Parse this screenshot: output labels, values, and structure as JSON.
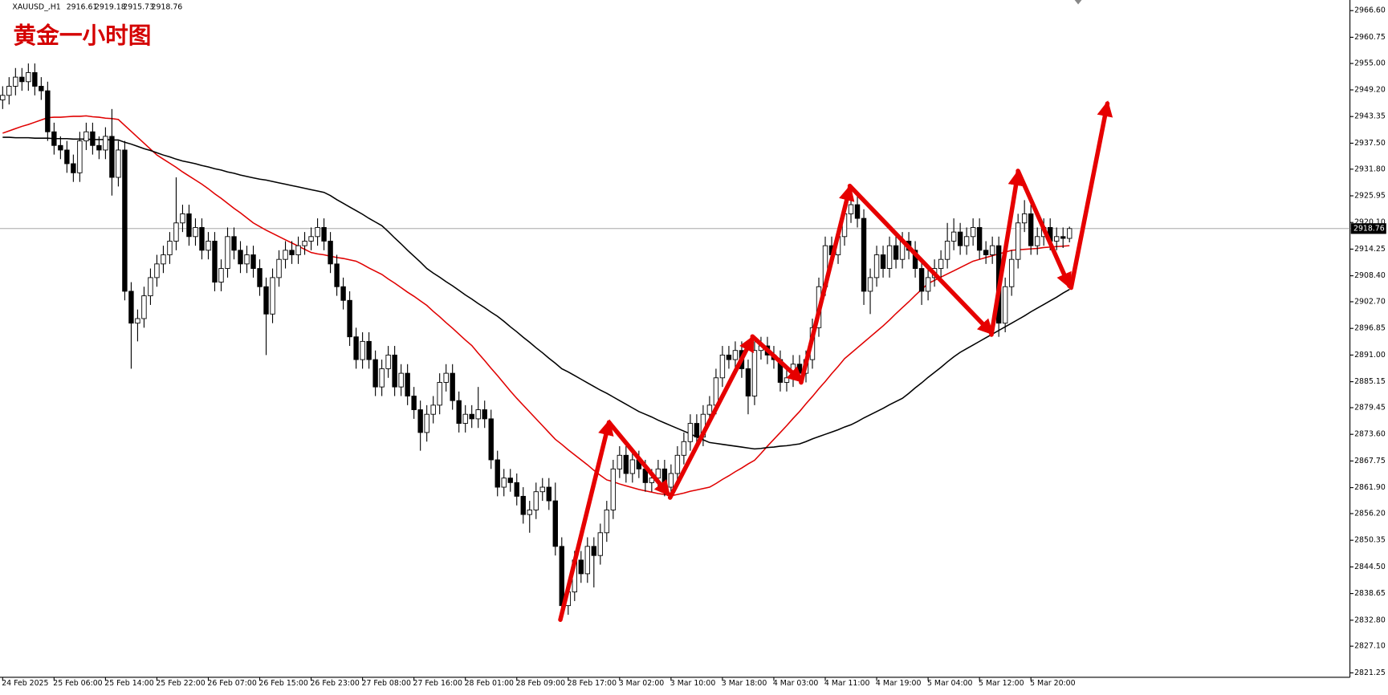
{
  "chart_data": {
    "type": "candlestick",
    "symbol": "XAUUSD_,H1",
    "title": "黄金一小时图",
    "categories": [
      "24 Feb 2025",
      null,
      null,
      null,
      null,
      null,
      null,
      null,
      "25 Feb 06:00",
      null,
      null,
      null,
      null,
      null,
      null,
      null,
      "25 Feb 14:00",
      null,
      null,
      null,
      null,
      null,
      null,
      null,
      "25 Feb 22:00",
      null,
      null,
      null,
      null,
      null,
      null,
      null,
      "26 Feb 07:00",
      null,
      null,
      null,
      null,
      null,
      null,
      null,
      "26 Feb 15:00",
      null,
      null,
      null,
      null,
      null,
      null,
      null,
      "26 Feb 23:00",
      null,
      null,
      null,
      null,
      null,
      null,
      null,
      "27 Feb 08:00",
      null,
      null,
      null,
      null,
      null,
      null,
      null,
      "27 Feb 16:00",
      null,
      null,
      null,
      null,
      null,
      null,
      null,
      "28 Feb 01:00",
      null,
      null,
      null,
      null,
      null,
      null,
      null,
      "28 Feb 09:00",
      null,
      null,
      null,
      null,
      null,
      null,
      null,
      "28 Feb 17:00",
      null,
      null,
      null,
      null,
      null,
      null,
      null,
      "3 Mar 02:00",
      null,
      null,
      null,
      null,
      null,
      null,
      null,
      "3 Mar 10:00",
      null,
      null,
      null,
      null,
      null,
      null,
      null,
      "3 Mar 18:00",
      null,
      null,
      null,
      null,
      null,
      null,
      null,
      "4 Mar 03:00",
      null,
      null,
      null,
      null,
      null,
      null,
      null,
      "4 Mar 11:00",
      null,
      null,
      null,
      null,
      null,
      null,
      null,
      "4 Mar 19:00",
      null,
      null,
      null,
      null,
      null,
      null,
      null,
      "5 Mar 04:00",
      null,
      null,
      null,
      null,
      null,
      null,
      null,
      "5 Mar 12:00",
      null,
      null,
      null,
      null,
      null,
      null,
      null,
      "5 Mar 20:00",
      null,
      null,
      null,
      null,
      null,
      null
    ],
    "open": [
      2947,
      2948,
      2950,
      2952,
      2951,
      2953,
      2950,
      2949,
      2940,
      2937,
      2936,
      2933,
      2931,
      2938,
      2940,
      2937,
      2936,
      2939,
      2930,
      2936,
      2905,
      2898,
      2899,
      2904,
      2908,
      2911,
      2913,
      2916,
      2920,
      2922,
      2917,
      2919,
      2914,
      2916,
      2907,
      2910,
      2917,
      2914,
      2911,
      2913,
      2910,
      2906,
      2900,
      2908,
      2912,
      2914,
      2913,
      2915,
      2916,
      2917,
      2919,
      2916,
      2911,
      2906,
      2903,
      2895,
      2890,
      2894,
      2890,
      2884,
      2888,
      2891,
      2884,
      2887,
      2882,
      2879,
      2874,
      2878,
      2880,
      2885,
      2887,
      2881,
      2876,
      2878,
      2877,
      2879,
      2877,
      2868,
      2862,
      2864,
      2863,
      2860,
      2856,
      2857,
      2861,
      2862,
      2859,
      2849,
      2836,
      2839,
      2846,
      2843,
      2849,
      2847,
      2852,
      2857,
      2866,
      2869,
      2865,
      2868,
      2866,
      2863,
      2864,
      2866,
      2862,
      2865,
      2869,
      2872,
      2876,
      2873,
      2878,
      2880,
      2886,
      2891,
      2890,
      2892,
      2888,
      2882,
      2892,
      2893,
      2891,
      2890,
      2885,
      2886,
      2889,
      2887,
      2890,
      2897,
      2906,
      2915,
      2913,
      2917,
      2922,
      2924,
      2921,
      2905,
      2908,
      2913,
      2910,
      2915,
      2912,
      2916,
      2914,
      2910,
      2905,
      2908,
      2910,
      2912,
      2916,
      2918,
      2915,
      2917,
      2919,
      2914,
      2913,
      2915,
      2898,
      2906,
      2912,
      2920,
      2922,
      2915,
      2917,
      2919,
      2916,
      2917,
      2916.61
    ],
    "high": [
      2950,
      2952,
      2954,
      2954,
      2955,
      2955,
      2952,
      2951,
      2942,
      2939,
      2938,
      2935,
      2940,
      2942,
      2942,
      2939,
      2941,
      2945,
      2938,
      2938,
      2907,
      2901,
      2906,
      2910,
      2913,
      2915,
      2918,
      2930,
      2924,
      2924,
      2921,
      2921,
      2918,
      2918,
      2912,
      2919,
      2919,
      2916,
      2915,
      2915,
      2912,
      2908,
      2910,
      2914,
      2916,
      2916,
      2917,
      2918,
      2919,
      2921,
      2921,
      2918,
      2913,
      2908,
      2905,
      2897,
      2896,
      2896,
      2892,
      2890,
      2893,
      2893,
      2889,
      2889,
      2884,
      2881,
      2880,
      2882,
      2887,
      2889,
      2889,
      2883,
      2880,
      2880,
      2884,
      2881,
      2879,
      2870,
      2866,
      2866,
      2865,
      2862,
      2859,
      2863,
      2864,
      2864,
      2863,
      2851,
      2841,
      2848,
      2848,
      2851,
      2851,
      2854,
      2859,
      2868,
      2871,
      2871,
      2870,
      2870,
      2868,
      2866,
      2868,
      2868,
      2867,
      2871,
      2874,
      2878,
      2878,
      2880,
      2882,
      2888,
      2893,
      2893,
      2894,
      2894,
      2890,
      2894,
      2895,
      2895,
      2893,
      2892,
      2888,
      2891,
      2891,
      2892,
      2899,
      2908,
      2917,
      2917,
      2919,
      2924,
      2928,
      2926,
      2923,
      2910,
      2915,
      2915,
      2917,
      2917,
      2918,
      2918,
      2916,
      2912,
      2910,
      2912,
      2914,
      2920,
      2921,
      2920,
      2919,
      2921,
      2921,
      2916,
      2917,
      2917,
      2908,
      2914,
      2922,
      2925,
      2924,
      2919,
      2921,
      2921,
      2919,
      2919,
      2919.18
    ],
    "low": [
      2945,
      2946,
      2948,
      2949,
      2949,
      2948,
      2947,
      2938,
      2935,
      2934,
      2931,
      2929,
      2929,
      2936,
      2935,
      2934,
      2934,
      2926,
      2928,
      2903,
      2888,
      2894,
      2897,
      2902,
      2906,
      2909,
      2911,
      2914,
      2918,
      2915,
      2915,
      2912,
      2912,
      2905,
      2905,
      2908,
      2912,
      2909,
      2909,
      2908,
      2904,
      2891,
      2898,
      2906,
      2910,
      2911,
      2911,
      2913,
      2914,
      2915,
      2914,
      2909,
      2904,
      2901,
      2893,
      2888,
      2888,
      2888,
      2882,
      2882,
      2886,
      2882,
      2882,
      2880,
      2877,
      2870,
      2872,
      2876,
      2878,
      2883,
      2879,
      2874,
      2874,
      2875,
      2875,
      2875,
      2866,
      2860,
      2860,
      2861,
      2858,
      2854,
      2852,
      2855,
      2859,
      2857,
      2847,
      2833,
      2834,
      2837,
      2841,
      2841,
      2840,
      2845,
      2850,
      2855,
      2864,
      2863,
      2863,
      2864,
      2861,
      2861,
      2862,
      2860,
      2860,
      2863,
      2867,
      2870,
      2871,
      2871,
      2876,
      2878,
      2884,
      2888,
      2888,
      2886,
      2878,
      2880,
      2890,
      2889,
      2888,
      2883,
      2883,
      2884,
      2885,
      2885,
      2888,
      2895,
      2904,
      2911,
      2911,
      2915,
      2920,
      2919,
      2902,
      2900,
      2906,
      2908,
      2908,
      2910,
      2910,
      2912,
      2908,
      2902,
      2903,
      2906,
      2908,
      2910,
      2914,
      2913,
      2913,
      2915,
      2912,
      2911,
      2911,
      2895,
      2896,
      2904,
      2910,
      2918,
      2913,
      2913,
      2915,
      2914,
      2914,
      2914.5,
      2915.73
    ],
    "close": [
      2948,
      2950,
      2952,
      2951,
      2953,
      2950,
      2949,
      2940,
      2937,
      2936,
      2933,
      2931,
      2938,
      2940,
      2937,
      2936,
      2939,
      2930,
      2936,
      2905,
      2898,
      2899,
      2904,
      2908,
      2911,
      2913,
      2916,
      2920,
      2922,
      2917,
      2919,
      2914,
      2916,
      2907,
      2910,
      2917,
      2914,
      2911,
      2913,
      2910,
      2906,
      2900,
      2908,
      2912,
      2914,
      2913,
      2915,
      2916,
      2917,
      2919,
      2916,
      2911,
      2906,
      2903,
      2895,
      2890,
      2894,
      2890,
      2884,
      2888,
      2891,
      2884,
      2887,
      2882,
      2879,
      2874,
      2878,
      2880,
      2885,
      2887,
      2881,
      2876,
      2878,
      2877,
      2879,
      2877,
      2868,
      2862,
      2864,
      2863,
      2860,
      2856,
      2857,
      2861,
      2862,
      2859,
      2849,
      2836,
      2839,
      2846,
      2843,
      2849,
      2847,
      2852,
      2857,
      2866,
      2869,
      2865,
      2868,
      2866,
      2863,
      2864,
      2866,
      2862,
      2865,
      2869,
      2872,
      2876,
      2873,
      2878,
      2880,
      2886,
      2891,
      2890,
      2892,
      2888,
      2882,
      2892,
      2893,
      2891,
      2890,
      2885,
      2886,
      2889,
      2887,
      2890,
      2897,
      2906,
      2915,
      2913,
      2917,
      2922,
      2924,
      2921,
      2905,
      2908,
      2913,
      2910,
      2915,
      2912,
      2916,
      2914,
      2910,
      2905,
      2908,
      2910,
      2912,
      2916,
      2918,
      2915,
      2917,
      2919,
      2914,
      2913,
      2915,
      2898,
      2906,
      2912,
      2920,
      2922,
      2915,
      2917,
      2919,
      2916,
      2917,
      2916.61,
      2918.76
    ],
    "series": [
      {
        "color": "#e00000",
        "values": [
          2939.7,
          2940.2,
          2940.7,
          2941.2,
          2941.6,
          2942.1,
          2942.6,
          2943.1,
          2943.2,
          2943.2,
          2943.3,
          2943.4,
          2943.4,
          2943.5,
          2943.3,
          2943.2,
          2943.0,
          2942.9,
          2942.7,
          2941.4,
          2940.1,
          2938.8,
          2937.5,
          2936.2,
          2934.9,
          2934.0,
          2933.1,
          2932.2,
          2931.2,
          2930.3,
          2929.4,
          2928.5,
          2927.5,
          2926.4,
          2925.4,
          2924.3,
          2923.2,
          2922.2,
          2921.1,
          2920.0,
          2919.2,
          2918.4,
          2917.7,
          2917.0,
          2916.3,
          2915.6,
          2914.9,
          2914.2,
          2913.5,
          2913.2,
          2913.0,
          2912.7,
          2912.4,
          2912.2,
          2911.9,
          2911.6,
          2910.9,
          2910.1,
          2909.4,
          2908.7,
          2907.7,
          2906.8,
          2905.8,
          2904.8,
          2903.9,
          2902.9,
          2901.9,
          2900.6,
          2899.4,
          2898.1,
          2896.9,
          2895.6,
          2894.3,
          2893.1,
          2891.4,
          2889.8,
          2888.1,
          2886.5,
          2884.8,
          2883.1,
          2881.5,
          2880.0,
          2878.5,
          2877.0,
          2875.5,
          2874.0,
          2872.5,
          2871.4,
          2870.2,
          2869.1,
          2868.0,
          2866.9,
          2865.7,
          2864.6,
          2863.6,
          2863.2,
          2862.7,
          2862.3,
          2861.9,
          2861.5,
          2861.2,
          2860.9,
          2860.6,
          2860.4,
          2860.1,
          2860.4,
          2860.7,
          2861.1,
          2861.4,
          2861.7,
          2862.0,
          2862.8,
          2863.7,
          2864.5,
          2865.4,
          2866.2,
          2867.1,
          2867.9,
          2869.4,
          2871.0,
          2872.5,
          2874.0,
          2875.5,
          2877.1,
          2878.6,
          2880.3,
          2881.9,
          2883.6,
          2885.2,
          2886.9,
          2888.5,
          2890.2,
          2891.4,
          2892.6,
          2893.8,
          2895.0,
          2896.2,
          2897.4,
          2898.7,
          2900.1,
          2901.4,
          2902.7,
          2904.1,
          2905.4,
          2906.7,
          2907.4,
          2908.1,
          2908.8,
          2909.5,
          2910.2,
          2910.9,
          2911.6,
          2912.0,
          2912.4,
          2912.8,
          2913.2,
          2913.6,
          2914.0,
          2914.1,
          2914.2,
          2914.3,
          2914.4,
          2914.6,
          2914.7,
          2914.8,
          2914.9,
          2915.0
        ]
      },
      {
        "color": "#000000",
        "values": [
          2938.8,
          2938.8,
          2938.7,
          2938.7,
          2938.7,
          2938.6,
          2938.6,
          2938.6,
          2938.5,
          2938.5,
          2938.5,
          2938.4,
          2938.4,
          2938.4,
          2938.3,
          2938.3,
          2938.3,
          2938.2,
          2938.2,
          2937.7,
          2937.3,
          2936.8,
          2936.3,
          2935.9,
          2935.4,
          2934.9,
          2934.5,
          2934.0,
          2933.6,
          2933.3,
          2933.0,
          2932.6,
          2932.3,
          2931.9,
          2931.6,
          2931.2,
          2930.9,
          2930.5,
          2930.2,
          2929.9,
          2929.6,
          2929.4,
          2929.1,
          2928.8,
          2928.5,
          2928.2,
          2927.9,
          2927.6,
          2927.3,
          2927.0,
          2926.7,
          2926.0,
          2925.1,
          2924.3,
          2923.5,
          2922.7,
          2921.9,
          2921.0,
          2920.2,
          2919.4,
          2918.1,
          2916.7,
          2915.4,
          2914.0,
          2912.7,
          2911.4,
          2910.0,
          2909.0,
          2908.1,
          2907.1,
          2906.2,
          2905.2,
          2904.2,
          2903.3,
          2902.3,
          2901.4,
          2900.4,
          2899.5,
          2898.4,
          2897.2,
          2896.1,
          2894.9,
          2893.8,
          2892.6,
          2891.5,
          2890.3,
          2889.2,
          2888.0,
          2887.3,
          2886.5,
          2885.7,
          2884.9,
          2884.1,
          2883.3,
          2882.6,
          2881.8,
          2881.0,
          2880.2,
          2879.4,
          2878.6,
          2878.0,
          2877.4,
          2876.7,
          2876.1,
          2875.5,
          2874.9,
          2874.3,
          2873.7,
          2873.0,
          2872.4,
          2871.8,
          2871.6,
          2871.4,
          2871.2,
          2871.0,
          2870.8,
          2870.6,
          2870.4,
          2870.5,
          2870.7,
          2870.8,
          2871.0,
          2871.1,
          2871.3,
          2871.5,
          2872.0,
          2872.6,
          2873.1,
          2873.6,
          2874.1,
          2874.6,
          2875.2,
          2875.7,
          2876.4,
          2877.2,
          2877.9,
          2878.6,
          2879.3,
          2880.1,
          2880.8,
          2881.5,
          2882.6,
          2883.8,
          2884.9,
          2886.1,
          2887.2,
          2888.3,
          2889.5,
          2890.6,
          2891.6,
          2892.4,
          2893.2,
          2894.0,
          2894.8,
          2895.6,
          2896.4,
          2897.2,
          2898.0,
          2898.8,
          2899.6,
          2900.5,
          2901.3,
          2902.1,
          2902.9,
          2903.7,
          2904.6,
          2905.4
        ]
      }
    ],
    "ylim": [
      2820.27,
      2968.93
    ],
    "yticks": [
      {
        "value": 2966.6,
        "label": "2966.60"
      },
      2960.75,
      {
        "value": 2955,
        "label": "2955.00"
      },
      {
        "value": 2949.2,
        "label": "2949.20"
      },
      2943.35,
      {
        "value": 2937.5,
        "label": "2937.50"
      },
      {
        "value": 2931.8,
        "label": "2931.80"
      },
      2925.95,
      {
        "value": 2920.1,
        "label": "2920.10"
      },
      2914.25,
      {
        "value": 2908.4,
        "label": "2908.40"
      },
      {
        "value": 2902.7,
        "label": "2902.70"
      },
      2896.85,
      {
        "value": 2891,
        "label": "2891.00"
      },
      2885.15,
      2879.45,
      {
        "value": 2873.6,
        "label": "2873.60"
      },
      2867.75,
      {
        "value": 2861.9,
        "label": "2861.90"
      },
      {
        "value": 2856.2,
        "label": "2856.20"
      },
      2850.35,
      {
        "value": 2844.5,
        "label": "2844.50"
      },
      2838.65,
      {
        "value": 2832.8,
        "label": "2832.80"
      },
      {
        "value": 2827.1,
        "label": "2827.10"
      },
      2821.25
    ]
  }
}
